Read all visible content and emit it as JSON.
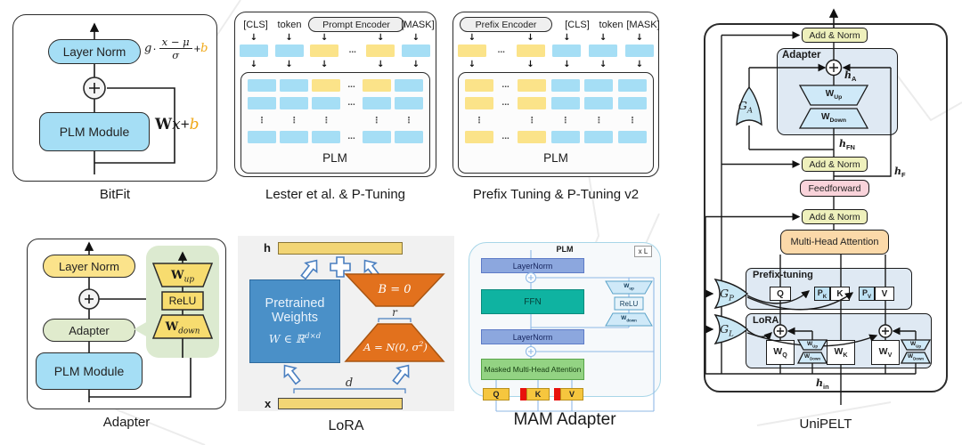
{
  "palette": {
    "blue-token": "#a5def5",
    "yellow-token": "#fbe389",
    "bias-orange": "#f0a818",
    "bitfit-blue": "#a5def5",
    "pill-gray": "#efefef",
    "adapter-green": "#e0ebcd",
    "callout-green": "#dcead0",
    "adapter-yellow": "#fbe38b",
    "trap-yellow": "#f7dc6f",
    "lora-bg": "#f1f1f1",
    "lora-blue": "#4a90c8",
    "lora-orange": "#e2711d",
    "lora-bar": "#f2d575",
    "lora-outline": "#4a7fc0",
    "mam-bg": "#f6f9fb",
    "mam-border": "#a8d6e8",
    "mam-ln": "#8ca7de",
    "mam-ln-border": "#5d7bc7",
    "mam-ffn": "#0fb3a1",
    "mam-green": "#93d383",
    "mam-yellow": "#f6c63e",
    "mam-red": "#e8120c",
    "mam-line": "#8fb9e6",
    "mam-trap": "#cfe9f8",
    "mam-trap-border": "#5ba3c9",
    "uni-addnorm": "#eef0bc",
    "uni-box": "#dfe9f3",
    "uni-trap": "#cfe9f8",
    "uni-pink": "#f9d3da",
    "uni-orange": "#fbd9a9",
    "uni-gate": "#c9e7f4",
    "uni-pblue": "#bfe2f4"
  },
  "bitfit": {
    "caption": "BitFit",
    "layer_norm": "Layer Norm",
    "plm": "PLM Module",
    "formula": {
      "g": "g",
      "dot": "·",
      "num": "x − μ",
      "den": "σ",
      "plus": "+",
      "b": "b"
    },
    "wxb": {
      "w": "W",
      "x": "x",
      "plus": "+",
      "b": "b"
    }
  },
  "lester": {
    "caption": "Lester et al. & P-Tuning",
    "cls": "[CLS]",
    "token": "token",
    "prompt_encoder": "Prompt Encoder",
    "mask": "[MASK]",
    "plm": "PLM",
    "embed_row": [
      "b",
      "b",
      "y",
      "...",
      "y",
      "b"
    ],
    "plm_rows": [
      [
        "b",
        "b",
        "y",
        "...",
        "y",
        "b"
      ],
      [
        "b",
        "b",
        "b",
        "...",
        "b",
        "b"
      ],
      [
        "⋮",
        "⋮",
        "⋮",
        "",
        "⋮",
        "⋮"
      ],
      [
        "b",
        "b",
        "b",
        "...",
        "b",
        "b"
      ]
    ]
  },
  "prefix": {
    "caption": "Prefix Tuning & P-Tuning v2",
    "prefix_encoder": "Prefix Encoder",
    "cls": "[CLS]",
    "token": "token",
    "mask": "[MASK]",
    "plm": "PLM",
    "embed_row": [
      "y",
      "...",
      "y",
      "b",
      "b",
      "b"
    ],
    "plm_rows": [
      [
        "y",
        "...",
        "y",
        "b",
        "b",
        "b"
      ],
      [
        "y",
        "...",
        "y",
        "b",
        "b",
        "b"
      ],
      [
        "⋮",
        "",
        "⋮",
        "⋮",
        "⋮",
        "⋮"
      ],
      [
        "y",
        "...",
        "y",
        "b",
        "b",
        "b"
      ]
    ]
  },
  "adapter": {
    "caption": "Adapter",
    "layer_norm": "Layer Norm",
    "adapter": "Adapter",
    "plm": "PLM Module",
    "w": "W",
    "up": "up",
    "down": "down",
    "relu": "ReLU"
  },
  "lora": {
    "caption": "LoRA",
    "h": "h",
    "x": "x",
    "pretrained": "Pretrained",
    "weights": "Weights",
    "w_formula": "W ∈ ℝ",
    "w_sup": "d×d",
    "b_eq": "B = 0",
    "a_eq": "A = N(0, σ",
    "a_sup": "2",
    "a_close": ")",
    "r": "r",
    "d": "d"
  },
  "mam": {
    "caption": "MAM Adapter",
    "plm": "PLM",
    "xl": "x L",
    "layernorm": "LayerNorm",
    "ffn": "FFN",
    "relu": "ReLU",
    "w": "W",
    "up": "up",
    "down": "down",
    "mha": "Masked Multi-Head Attention",
    "q": "Q",
    "k": "K",
    "v": "V"
  },
  "unipelt": {
    "caption": "UniPELT",
    "add_norm": "Add & Norm",
    "adapter": "Adapter",
    "feedforward": "Feedforward",
    "mha": "Multi-Head Attention",
    "prefix": "Prefix-tuning",
    "lora": "LoRA",
    "h": "h",
    "a_sub": "A",
    "fn_sub": "FN",
    "f_sub": "F",
    "in_sub": "in",
    "w": "W",
    "up": "Up",
    "down": "Down",
    "q": "Q",
    "k": "K",
    "v": "V",
    "p": "P",
    "pk_sub": "K",
    "pv_sub": "V",
    "wq_sub": "Q",
    "wk_sub": "K",
    "wv_sub": "V",
    "g": "G",
    "ga_sub": "A",
    "gp_sub": "P",
    "gl_sub": "L"
  }
}
